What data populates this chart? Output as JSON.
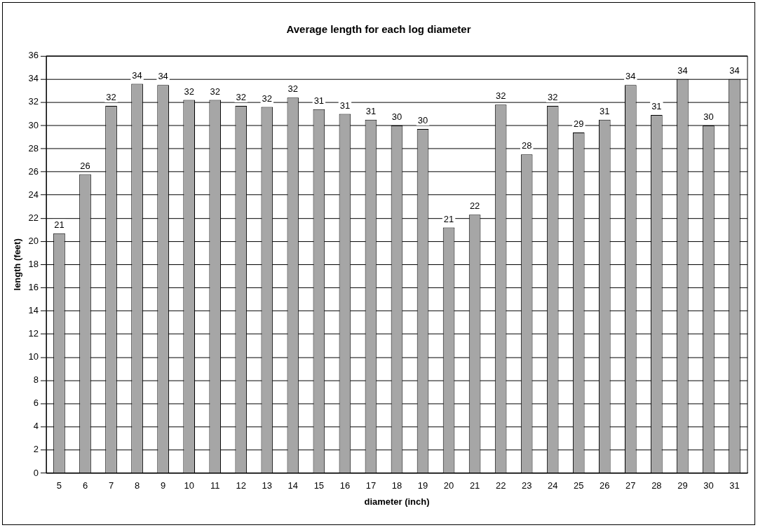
{
  "chart_data": {
    "type": "bar",
    "title": "Average length for each log diameter",
    "xlabel": "diameter (inch)",
    "ylabel": "length (feet)",
    "categories": [
      "5",
      "6",
      "7",
      "8",
      "9",
      "10",
      "11",
      "12",
      "13",
      "14",
      "15",
      "16",
      "17",
      "18",
      "19",
      "20",
      "21",
      "22",
      "23",
      "24",
      "25",
      "26",
      "27",
      "28",
      "29",
      "30",
      "31"
    ],
    "values": [
      20.7,
      25.8,
      31.7,
      33.6,
      33.5,
      32.2,
      32.2,
      31.7,
      31.6,
      32.4,
      31.4,
      31.0,
      30.5,
      30.0,
      29.7,
      21.2,
      22.3,
      31.8,
      27.5,
      31.7,
      29.4,
      30.5,
      33.5,
      30.9,
      34.0,
      30.0,
      34.0
    ],
    "value_labels": [
      "21",
      "26",
      "32",
      "34",
      "34",
      "32",
      "32",
      "32",
      "32",
      "32",
      "31",
      "31",
      "31",
      "30",
      "30",
      "21",
      "22",
      "32",
      "28",
      "32",
      "29",
      "31",
      "34",
      "31",
      "34",
      "30",
      "34"
    ],
    "color": "#a6a6a6",
    "ylim": [
      0,
      36
    ],
    "yticks": [
      0,
      2,
      4,
      6,
      8,
      10,
      12,
      14,
      16,
      18,
      20,
      22,
      24,
      26,
      28,
      30,
      32,
      34,
      36
    ],
    "grid": "y",
    "legend": false
  }
}
